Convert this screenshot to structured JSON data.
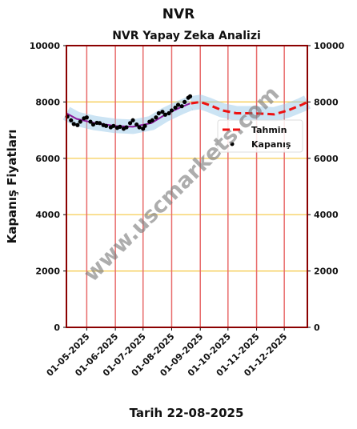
{
  "chart_data": {
    "type": "line",
    "title": "NVR",
    "subtitle": "NVR Yapay Zeka Analizi",
    "y_label": "Kapanış Fiyatları",
    "x_label": "Tarih 22-08-2025",
    "watermark": "www.uscmarkets.com",
    "xlim": [
      "2025-04-09",
      "2025-12-26"
    ],
    "xticks": [
      {
        "value": "2025-05-01",
        "label": "01-05-2025"
      },
      {
        "value": "2025-06-01",
        "label": "01-06-2025"
      },
      {
        "value": "2025-07-01",
        "label": "01-07-2025"
      },
      {
        "value": "2025-08-01",
        "label": "01-08-2025"
      },
      {
        "value": "2025-09-01",
        "label": "01-09-2025"
      },
      {
        "value": "2025-10-01",
        "label": "01-10-2025"
      },
      {
        "value": "2025-11-01",
        "label": "01-11-2025"
      },
      {
        "value": "2025-12-01",
        "label": "01-12-2025"
      }
    ],
    "ylim": [
      0,
      10000
    ],
    "yticks": [
      0,
      2000,
      4000,
      6000,
      8000,
      10000
    ],
    "y2lim": [
      0,
      10000
    ],
    "y2ticks": [
      0,
      2000,
      4000,
      6000,
      8000,
      10000
    ],
    "grid": true,
    "legend": "center right",
    "series": [
      {
        "color": "#8b1a9c",
        "style": "solid",
        "x": [
          "2025-04-09",
          "2025-04-20",
          "2025-05-10",
          "2025-06-01",
          "2025-06-20",
          "2025-07-10",
          "2025-07-25",
          "2025-08-10",
          "2025-08-21"
        ],
        "values": [
          7600,
          7400,
          7250,
          7150,
          7120,
          7250,
          7550,
          7800,
          7950
        ]
      },
      {
        "name": "Tahmin",
        "color": "#ee1111",
        "style": "dashed",
        "x": [
          "2025-08-22",
          "2025-09-01",
          "2025-09-10",
          "2025-09-25",
          "2025-10-10",
          "2025-10-25",
          "2025-11-10",
          "2025-11-20",
          "2025-12-05",
          "2025-12-20",
          "2025-12-26"
        ],
        "values": [
          7950,
          8000,
          7900,
          7700,
          7600,
          7600,
          7580,
          7560,
          7700,
          7900,
          8000
        ]
      },
      {
        "name": "Kapanış",
        "color": "#000000",
        "style": "points",
        "x": [
          "2025-04-10",
          "2025-04-14",
          "2025-04-17",
          "2025-04-21",
          "2025-04-24",
          "2025-04-28",
          "2025-05-01",
          "2025-05-05",
          "2025-05-08",
          "2025-05-12",
          "2025-05-15",
          "2025-05-19",
          "2025-05-22",
          "2025-05-27",
          "2025-05-30",
          "2025-06-03",
          "2025-06-06",
          "2025-06-10",
          "2025-06-13",
          "2025-06-17",
          "2025-06-20",
          "2025-06-24",
          "2025-06-27",
          "2025-07-01",
          "2025-07-03",
          "2025-07-08",
          "2025-07-11",
          "2025-07-15",
          "2025-07-18",
          "2025-07-22",
          "2025-07-25",
          "2025-07-29",
          "2025-08-01",
          "2025-08-05",
          "2025-08-08",
          "2025-08-12",
          "2025-08-15",
          "2025-08-19",
          "2025-08-21"
        ],
        "values": [
          7480,
          7350,
          7220,
          7180,
          7300,
          7420,
          7450,
          7300,
          7200,
          7260,
          7250,
          7180,
          7150,
          7100,
          7150,
          7080,
          7120,
          7050,
          7100,
          7250,
          7350,
          7200,
          7100,
          7050,
          7150,
          7300,
          7350,
          7450,
          7600,
          7650,
          7550,
          7600,
          7700,
          7800,
          7900,
          7850,
          8000,
          8150,
          8200
        ]
      }
    ]
  }
}
